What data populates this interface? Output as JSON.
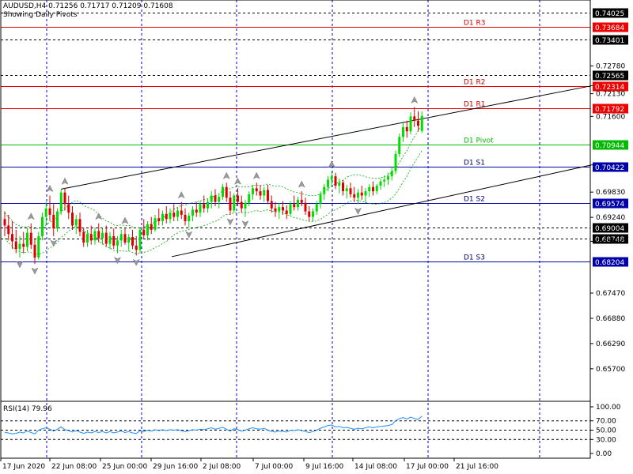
{
  "header": {
    "symbol_line": "AUDUSD,H4  0.71256 0.71717 0.71209 0.71608",
    "subtitle": "Showing Daily Pivots"
  },
  "indicator": {
    "label": "RSI(14) 79.96"
  },
  "colors": {
    "bull": "#00dd00",
    "bear": "#dd0000",
    "resistance": "#ee0000",
    "support": "#0000aa",
    "pivot": "#00bb00",
    "grid": "#0000cc",
    "rsi": "#1e90ff",
    "envelope": "#00aa00"
  },
  "chart_data": [
    {
      "type": "candlestick",
      "symbol": "AUDUSD",
      "timeframe": "H4",
      "ylim": [
        0.6494,
        0.7432
      ],
      "y_ticks": [
        "0.72130",
        "0.71600",
        "0.69830",
        "0.69240",
        "0.68680",
        "0.67470",
        "0.66880",
        "0.66290",
        "0.65700",
        "0.72780"
      ],
      "x_labels": [
        "17 Jun 2020",
        "22 Jun 08:00",
        "25 Jun 00:00",
        "29 Jun 16:00",
        "2 Jul 08:00",
        "7 Jul 00:00",
        "9 Jul 16:00",
        "14 Jul 08:00",
        "17 Jul 00:00",
        "21 Jul 16:00"
      ],
      "levels": [
        {
          "name": "",
          "value": "0.74025",
          "kind": "dotted"
        },
        {
          "name": "D1 R3",
          "value": "0.73684",
          "kind": "resistance"
        },
        {
          "name": "",
          "value": "0.73401",
          "kind": "dotted"
        },
        {
          "name": "",
          "value": "0.72565",
          "kind": "dotted"
        },
        {
          "name": "D1 R2",
          "value": "0.72314",
          "kind": "resistance"
        },
        {
          "name": "D1 R1",
          "value": "0.71792",
          "kind": "resistance"
        },
        {
          "name": "D1 Pivot",
          "value": "0.70944",
          "kind": "pivot"
        },
        {
          "name": "D1 S1",
          "value": "0.70422",
          "kind": "support"
        },
        {
          "name": "D1 S2",
          "value": "0.69574",
          "kind": "support"
        },
        {
          "name": "",
          "value": "0.69004",
          "kind": "dotted"
        },
        {
          "name": "",
          "value": "0.68748",
          "kind": "dotted"
        },
        {
          "name": "D1 S3",
          "value": "0.68204",
          "kind": "support"
        }
      ],
      "trend_channel": {
        "upper": [
          {
            "i": 15,
            "price": 0.699
          },
          {
            "i": 128,
            "price": 0.7232
          }
        ],
        "lower": [
          {
            "i": 36,
            "price": 0.6832
          },
          {
            "i": 128,
            "price": 0.7047
          }
        ]
      },
      "candles": [
        {
          "o": 0.692,
          "h": 0.6938,
          "l": 0.688,
          "c": 0.6905
        },
        {
          "o": 0.6905,
          "h": 0.693,
          "l": 0.687,
          "c": 0.6885
        },
        {
          "o": 0.6885,
          "h": 0.6915,
          "l": 0.685,
          "c": 0.6868
        },
        {
          "o": 0.6868,
          "h": 0.6895,
          "l": 0.684,
          "c": 0.685
        },
        {
          "o": 0.685,
          "h": 0.688,
          "l": 0.683,
          "c": 0.6862
        },
        {
          "o": 0.6862,
          "h": 0.689,
          "l": 0.684,
          "c": 0.6855
        },
        {
          "o": 0.6855,
          "h": 0.69,
          "l": 0.6845,
          "c": 0.6888
        },
        {
          "o": 0.6888,
          "h": 0.691,
          "l": 0.685,
          "c": 0.686
        },
        {
          "o": 0.686,
          "h": 0.6875,
          "l": 0.6815,
          "c": 0.683
        },
        {
          "o": 0.683,
          "h": 0.689,
          "l": 0.6825,
          "c": 0.688
        },
        {
          "o": 0.688,
          "h": 0.6935,
          "l": 0.687,
          "c": 0.6925
        },
        {
          "o": 0.6925,
          "h": 0.696,
          "l": 0.6905,
          "c": 0.6945
        },
        {
          "o": 0.6945,
          "h": 0.6975,
          "l": 0.6915,
          "c": 0.693
        },
        {
          "o": 0.693,
          "h": 0.6955,
          "l": 0.688,
          "c": 0.6898
        },
        {
          "o": 0.6898,
          "h": 0.6945,
          "l": 0.689,
          "c": 0.6938
        },
        {
          "o": 0.6938,
          "h": 0.699,
          "l": 0.693,
          "c": 0.6982
        },
        {
          "o": 0.6982,
          "h": 0.6992,
          "l": 0.694,
          "c": 0.6955
        },
        {
          "o": 0.6955,
          "h": 0.6975,
          "l": 0.692,
          "c": 0.6935
        },
        {
          "o": 0.6935,
          "h": 0.695,
          "l": 0.6895,
          "c": 0.6905
        },
        {
          "o": 0.6905,
          "h": 0.693,
          "l": 0.6885,
          "c": 0.692
        },
        {
          "o": 0.692,
          "h": 0.6935,
          "l": 0.688,
          "c": 0.689
        },
        {
          "o": 0.689,
          "h": 0.69,
          "l": 0.6855,
          "c": 0.6865
        },
        {
          "o": 0.6865,
          "h": 0.6895,
          "l": 0.6855,
          "c": 0.6885
        },
        {
          "o": 0.6885,
          "h": 0.6905,
          "l": 0.686,
          "c": 0.687
        },
        {
          "o": 0.687,
          "h": 0.69,
          "l": 0.686,
          "c": 0.6892
        },
        {
          "o": 0.6892,
          "h": 0.691,
          "l": 0.6865,
          "c": 0.6875
        },
        {
          "o": 0.6875,
          "h": 0.69,
          "l": 0.686,
          "c": 0.6888
        },
        {
          "o": 0.6888,
          "h": 0.6905,
          "l": 0.6855,
          "c": 0.6862
        },
        {
          "o": 0.6862,
          "h": 0.689,
          "l": 0.685,
          "c": 0.688
        },
        {
          "o": 0.688,
          "h": 0.6898,
          "l": 0.685,
          "c": 0.6858
        },
        {
          "o": 0.6858,
          "h": 0.688,
          "l": 0.684,
          "c": 0.687
        },
        {
          "o": 0.687,
          "h": 0.6895,
          "l": 0.6855,
          "c": 0.6885
        },
        {
          "o": 0.6885,
          "h": 0.69,
          "l": 0.686,
          "c": 0.6865
        },
        {
          "o": 0.6865,
          "h": 0.6885,
          "l": 0.6845,
          "c": 0.6878
        },
        {
          "o": 0.6878,
          "h": 0.6895,
          "l": 0.685,
          "c": 0.6858
        },
        {
          "o": 0.6858,
          "h": 0.688,
          "l": 0.6835,
          "c": 0.6848
        },
        {
          "o": 0.6848,
          "h": 0.69,
          "l": 0.684,
          "c": 0.6895
        },
        {
          "o": 0.6895,
          "h": 0.692,
          "l": 0.6875,
          "c": 0.6882
        },
        {
          "o": 0.6882,
          "h": 0.6915,
          "l": 0.687,
          "c": 0.6908
        },
        {
          "o": 0.6908,
          "h": 0.6925,
          "l": 0.6885,
          "c": 0.6895
        },
        {
          "o": 0.6895,
          "h": 0.693,
          "l": 0.689,
          "c": 0.6922
        },
        {
          "o": 0.6922,
          "h": 0.6945,
          "l": 0.6905,
          "c": 0.6915
        },
        {
          "o": 0.6915,
          "h": 0.694,
          "l": 0.6905,
          "c": 0.6932
        },
        {
          "o": 0.6932,
          "h": 0.695,
          "l": 0.691,
          "c": 0.692
        },
        {
          "o": 0.692,
          "h": 0.6945,
          "l": 0.691,
          "c": 0.6935
        },
        {
          "o": 0.6935,
          "h": 0.6955,
          "l": 0.6915,
          "c": 0.6925
        },
        {
          "o": 0.6925,
          "h": 0.6948,
          "l": 0.6915,
          "c": 0.694
        },
        {
          "o": 0.694,
          "h": 0.696,
          "l": 0.692,
          "c": 0.693
        },
        {
          "o": 0.693,
          "h": 0.6945,
          "l": 0.6905,
          "c": 0.6915
        },
        {
          "o": 0.6915,
          "h": 0.6935,
          "l": 0.69,
          "c": 0.6928
        },
        {
          "o": 0.6928,
          "h": 0.695,
          "l": 0.6915,
          "c": 0.6942
        },
        {
          "o": 0.6942,
          "h": 0.696,
          "l": 0.6925,
          "c": 0.6935
        },
        {
          "o": 0.6935,
          "h": 0.6962,
          "l": 0.6925,
          "c": 0.6955
        },
        {
          "o": 0.6955,
          "h": 0.6975,
          "l": 0.6935,
          "c": 0.6945
        },
        {
          "o": 0.6945,
          "h": 0.6968,
          "l": 0.6935,
          "c": 0.696
        },
        {
          "o": 0.696,
          "h": 0.6985,
          "l": 0.6945,
          "c": 0.6975
        },
        {
          "o": 0.6975,
          "h": 0.699,
          "l": 0.695,
          "c": 0.696
        },
        {
          "o": 0.696,
          "h": 0.698,
          "l": 0.6945,
          "c": 0.6972
        },
        {
          "o": 0.6972,
          "h": 0.7002,
          "l": 0.6965,
          "c": 0.6995
        },
        {
          "o": 0.6995,
          "h": 0.7005,
          "l": 0.696,
          "c": 0.697
        },
        {
          "o": 0.697,
          "h": 0.6985,
          "l": 0.693,
          "c": 0.694
        },
        {
          "o": 0.694,
          "h": 0.698,
          "l": 0.6935,
          "c": 0.6975
        },
        {
          "o": 0.6975,
          "h": 0.6992,
          "l": 0.695,
          "c": 0.696
        },
        {
          "o": 0.696,
          "h": 0.6975,
          "l": 0.6935,
          "c": 0.6945
        },
        {
          "o": 0.6945,
          "h": 0.6965,
          "l": 0.6925,
          "c": 0.6958
        },
        {
          "o": 0.6958,
          "h": 0.6985,
          "l": 0.695,
          "c": 0.6978
        },
        {
          "o": 0.6978,
          "h": 0.7,
          "l": 0.6965,
          "c": 0.6992
        },
        {
          "o": 0.6992,
          "h": 0.7005,
          "l": 0.6975,
          "c": 0.6985
        },
        {
          "o": 0.6985,
          "h": 0.7,
          "l": 0.6965,
          "c": 0.6975
        },
        {
          "o": 0.6975,
          "h": 0.6995,
          "l": 0.696,
          "c": 0.6988
        },
        {
          "o": 0.6988,
          "h": 0.7,
          "l": 0.6955,
          "c": 0.6962
        },
        {
          "o": 0.6962,
          "h": 0.6975,
          "l": 0.6935,
          "c": 0.6945
        },
        {
          "o": 0.6945,
          "h": 0.696,
          "l": 0.6925,
          "c": 0.6938
        },
        {
          "o": 0.6938,
          "h": 0.6958,
          "l": 0.692,
          "c": 0.6948
        },
        {
          "o": 0.6948,
          "h": 0.6962,
          "l": 0.693,
          "c": 0.694
        },
        {
          "o": 0.694,
          "h": 0.6952,
          "l": 0.692,
          "c": 0.6932
        },
        {
          "o": 0.6932,
          "h": 0.6962,
          "l": 0.6928,
          "c": 0.6955
        },
        {
          "o": 0.6955,
          "h": 0.6975,
          "l": 0.694,
          "c": 0.6948
        },
        {
          "o": 0.6948,
          "h": 0.6972,
          "l": 0.694,
          "c": 0.6965
        },
        {
          "o": 0.6965,
          "h": 0.6985,
          "l": 0.695,
          "c": 0.6958
        },
        {
          "o": 0.6958,
          "h": 0.697,
          "l": 0.693,
          "c": 0.6938
        },
        {
          "o": 0.6938,
          "h": 0.695,
          "l": 0.6915,
          "c": 0.6925
        },
        {
          "o": 0.6925,
          "h": 0.6945,
          "l": 0.6915,
          "c": 0.6938
        },
        {
          "o": 0.6938,
          "h": 0.6962,
          "l": 0.693,
          "c": 0.6955
        },
        {
          "o": 0.6955,
          "h": 0.6985,
          "l": 0.6945,
          "c": 0.6978
        },
        {
          "o": 0.6978,
          "h": 0.7002,
          "l": 0.6965,
          "c": 0.6995
        },
        {
          "o": 0.6995,
          "h": 0.702,
          "l": 0.6985,
          "c": 0.7012
        },
        {
          "o": 0.7012,
          "h": 0.7032,
          "l": 0.6995,
          "c": 0.702
        },
        {
          "o": 0.702,
          "h": 0.7028,
          "l": 0.699,
          "c": 0.6998
        },
        {
          "o": 0.6998,
          "h": 0.7015,
          "l": 0.698,
          "c": 0.7005
        },
        {
          "o": 0.7005,
          "h": 0.7012,
          "l": 0.6975,
          "c": 0.6985
        },
        {
          "o": 0.6985,
          "h": 0.7,
          "l": 0.6968,
          "c": 0.6992
        },
        {
          "o": 0.6992,
          "h": 0.7005,
          "l": 0.697,
          "c": 0.6978
        },
        {
          "o": 0.6978,
          "h": 0.6995,
          "l": 0.696,
          "c": 0.697
        },
        {
          "o": 0.697,
          "h": 0.699,
          "l": 0.6955,
          "c": 0.6982
        },
        {
          "o": 0.6982,
          "h": 0.6998,
          "l": 0.6965,
          "c": 0.6975
        },
        {
          "o": 0.6975,
          "h": 0.6992,
          "l": 0.6958,
          "c": 0.6985
        },
        {
          "o": 0.6985,
          "h": 0.7002,
          "l": 0.6972,
          "c": 0.6995
        },
        {
          "o": 0.6995,
          "h": 0.7008,
          "l": 0.6975,
          "c": 0.6985
        },
        {
          "o": 0.6985,
          "h": 0.7002,
          "l": 0.6978,
          "c": 0.6998
        },
        {
          "o": 0.6998,
          "h": 0.7015,
          "l": 0.6988,
          "c": 0.7008
        },
        {
          "o": 0.7008,
          "h": 0.7022,
          "l": 0.6995,
          "c": 0.7012
        },
        {
          "o": 0.7012,
          "h": 0.7028,
          "l": 0.7,
          "c": 0.702
        },
        {
          "o": 0.702,
          "h": 0.704,
          "l": 0.701,
          "c": 0.7032
        },
        {
          "o": 0.7032,
          "h": 0.708,
          "l": 0.7025,
          "c": 0.7072
        },
        {
          "o": 0.7072,
          "h": 0.712,
          "l": 0.7065,
          "c": 0.7112
        },
        {
          "o": 0.7112,
          "h": 0.7145,
          "l": 0.71,
          "c": 0.7135
        },
        {
          "o": 0.7135,
          "h": 0.715,
          "l": 0.711,
          "c": 0.7125
        },
        {
          "o": 0.7125,
          "h": 0.717,
          "l": 0.7118,
          "c": 0.716
        },
        {
          "o": 0.716,
          "h": 0.7182,
          "l": 0.7135,
          "c": 0.715
        },
        {
          "o": 0.715,
          "h": 0.7172,
          "l": 0.7125,
          "c": 0.7138
        },
        {
          "o": 0.7126,
          "h": 0.7172,
          "l": 0.7121,
          "c": 0.7161
        }
      ]
    },
    {
      "type": "line",
      "name": "RSI(14)",
      "ylim": [
        0,
        100
      ],
      "y_ticks": [
        "100.00",
        "70.00",
        "50.00",
        "30.00",
        "0.00"
      ],
      "levels": [
        70,
        50,
        30
      ],
      "values": [
        45,
        44,
        42,
        43,
        46,
        44,
        48,
        45,
        42,
        50,
        53,
        55,
        52,
        48,
        52,
        57,
        51,
        49,
        46,
        49,
        46,
        43,
        46,
        44,
        47,
        45,
        47,
        44,
        47,
        44,
        46,
        48,
        45,
        47,
        44,
        43,
        49,
        47,
        50,
        48,
        51,
        49,
        51,
        49,
        51,
        50,
        51,
        49,
        47,
        49,
        51,
        50,
        52,
        51,
        53,
        55,
        52,
        54,
        56,
        52,
        48,
        53,
        51,
        48,
        50,
        53,
        55,
        53,
        52,
        54,
        50,
        47,
        46,
        48,
        47,
        46,
        50,
        49,
        51,
        49,
        47,
        45,
        47,
        50,
        54,
        57,
        60,
        61,
        57,
        58,
        55,
        56,
        54,
        52,
        54,
        53,
        55,
        57,
        55,
        57,
        58,
        59,
        60,
        62,
        70,
        75,
        77,
        74,
        78,
        75,
        73,
        79.96
      ]
    }
  ]
}
